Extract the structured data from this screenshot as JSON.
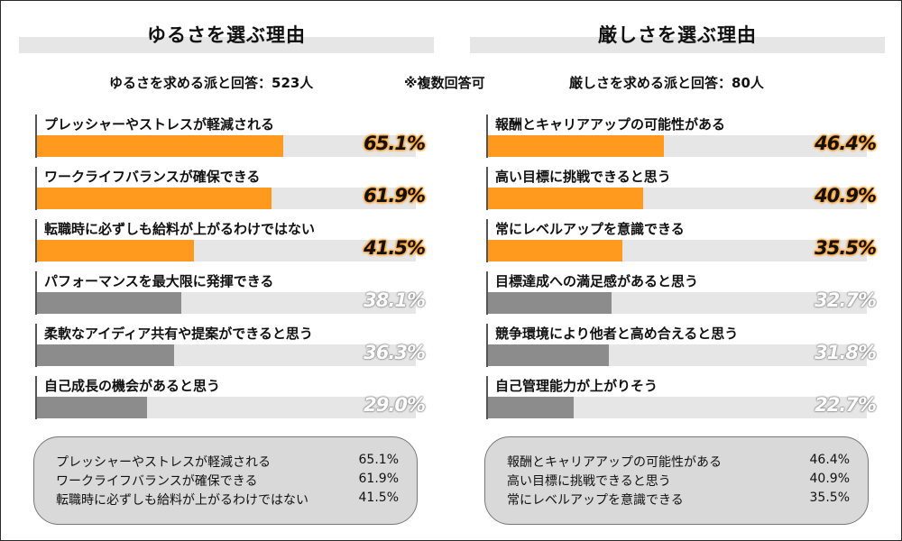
{
  "note": "※複数回答可",
  "colors": {
    "highlight": "#ff9a1f",
    "normal": "#8c8c8c",
    "track": "#e6e6e6",
    "summary_bg": "#d9d9d9"
  },
  "chart_data": [
    {
      "type": "bar",
      "title": "ゆるさを選ぶ理由",
      "subtitle": "ゆるさを求める派と回答：523人",
      "unit": "%",
      "ylim": [
        0,
        100
      ],
      "categories": [
        "プレッシャーやストレスが軽減される",
        "ワークライフバランスが確保できる",
        "転職時に必ずしも給料が上がるわけではない",
        "パフォーマンスを最大限に発揮できる",
        "柔軟なアイディア共有や提案ができると思う",
        "自己成長の機会があると思う"
      ],
      "values": [
        65.1,
        61.9,
        41.5,
        38.1,
        36.3,
        29.0
      ],
      "value_labels": [
        "65.1%",
        "61.9%",
        "41.5%",
        "38.1%",
        "36.3%",
        "29.0%"
      ],
      "highlight": [
        true,
        true,
        true,
        false,
        false,
        false
      ]
    },
    {
      "type": "bar",
      "title": "厳しさを選ぶ理由",
      "subtitle": "厳しさを求める派と回答：80人",
      "unit": "%",
      "ylim": [
        0,
        100
      ],
      "categories": [
        "報酬とキャリアアップの可能性がある",
        "高い目標に挑戦できると思う",
        "常にレベルアップを意識できる",
        "目標達成への満足感があると思う",
        "競争環境により他者と高め合えると思う",
        "自己管理能力が上がりそう"
      ],
      "values": [
        46.4,
        40.9,
        35.5,
        32.7,
        31.8,
        22.7
      ],
      "value_labels": [
        "46.4%",
        "40.9%",
        "35.5%",
        "32.7%",
        "31.8%",
        "22.7%"
      ],
      "highlight": [
        true,
        true,
        true,
        false,
        false,
        false
      ]
    }
  ],
  "summaries": [
    {
      "rows": [
        {
          "label": "プレッシャーやストレスが軽減される",
          "value": "65.1%"
        },
        {
          "label": "ワークライフバランスが確保できる",
          "value": "61.9%"
        },
        {
          "label": "転職時に必ずしも給料が上がるわけではない",
          "value": "41.5%"
        }
      ]
    },
    {
      "rows": [
        {
          "label": "報酬とキャリアアップの可能性がある",
          "value": "46.4%"
        },
        {
          "label": "高い目標に挑戦できると思う",
          "value": "40.9%"
        },
        {
          "label": "常にレベルアップを意識できる",
          "value": "35.5%"
        }
      ]
    }
  ]
}
